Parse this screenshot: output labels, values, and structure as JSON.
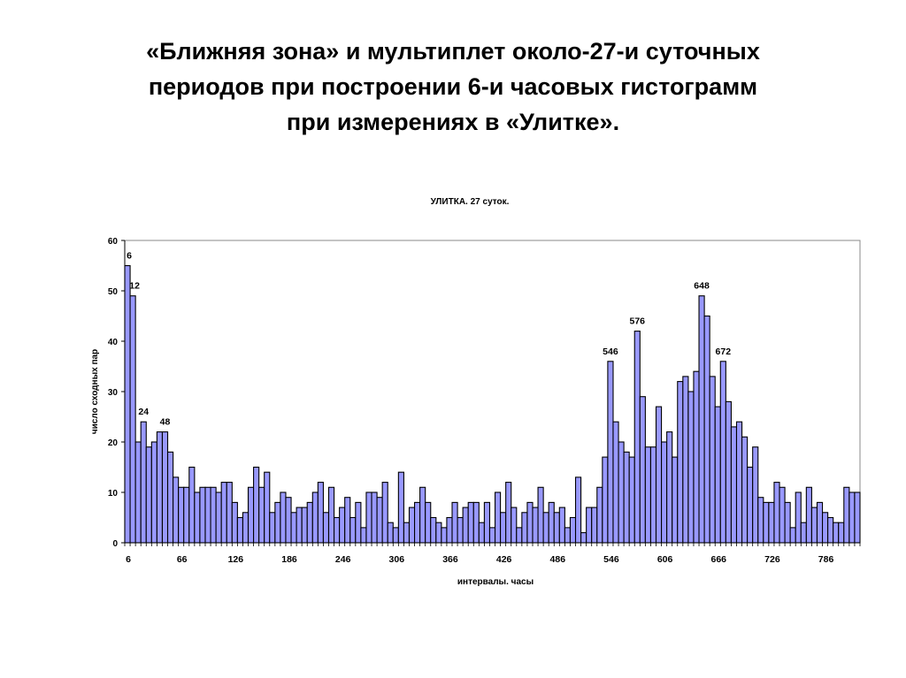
{
  "heading": {
    "lines": [
      "«Ближняя зона» и мультиплет около-27-и суточных",
      "периодов при построении 6-и часовых гистограмм",
      "при измерениях в «Улитке»."
    ]
  },
  "chart_data": {
    "type": "bar",
    "title": "УЛИТКА. 27 суток.",
    "xlabel": "интервалы. часы",
    "ylabel": "число сходных пар",
    "ylim": [
      0,
      60
    ],
    "yticks": [
      0,
      10,
      20,
      30,
      40,
      50,
      60
    ],
    "xtick_labels": [
      "6",
      "66",
      "126",
      "186",
      "246",
      "306",
      "366",
      "426",
      "486",
      "546",
      "606",
      "666",
      "726",
      "786"
    ],
    "grid": false,
    "bar_color": "#9999ff",
    "bar_edge_color": "#000000",
    "x_start": 6,
    "x_step": 6,
    "values": [
      55,
      49,
      20,
      24,
      19,
      20,
      22,
      22,
      18,
      13,
      11,
      11,
      15,
      10,
      11,
      11,
      11,
      10,
      12,
      12,
      8,
      5,
      6,
      11,
      15,
      11,
      14,
      6,
      8,
      10,
      9,
      6,
      7,
      7,
      8,
      10,
      12,
      6,
      11,
      5,
      7,
      9,
      5,
      8,
      3,
      10,
      10,
      9,
      12,
      4,
      3,
      14,
      4,
      7,
      8,
      11,
      8,
      5,
      4,
      3,
      5,
      8,
      5,
      7,
      8,
      8,
      4,
      8,
      3,
      10,
      6,
      12,
      7,
      3,
      6,
      8,
      7,
      11,
      6,
      8,
      6,
      7,
      3,
      5,
      13,
      2,
      7,
      7,
      11,
      17,
      36,
      24,
      20,
      18,
      17,
      42,
      29,
      19,
      19,
      27,
      20,
      22,
      17,
      32,
      33,
      30,
      34,
      49,
      45,
      33,
      27,
      36,
      28,
      23,
      24,
      21,
      15,
      19,
      9,
      8,
      8,
      12,
      11,
      8,
      3,
      10,
      4,
      11,
      7,
      8,
      6,
      5,
      4,
      4,
      11,
      10,
      10
    ],
    "annotations": [
      {
        "x": 6,
        "label": "6"
      },
      {
        "x": 12,
        "label": "12"
      },
      {
        "x": 24,
        "label": "24"
      },
      {
        "x": 48,
        "label": "48"
      },
      {
        "x": 546,
        "label": "546"
      },
      {
        "x": 576,
        "label": "576"
      },
      {
        "x": 648,
        "label": "648"
      },
      {
        "x": 672,
        "label": "672"
      }
    ]
  }
}
